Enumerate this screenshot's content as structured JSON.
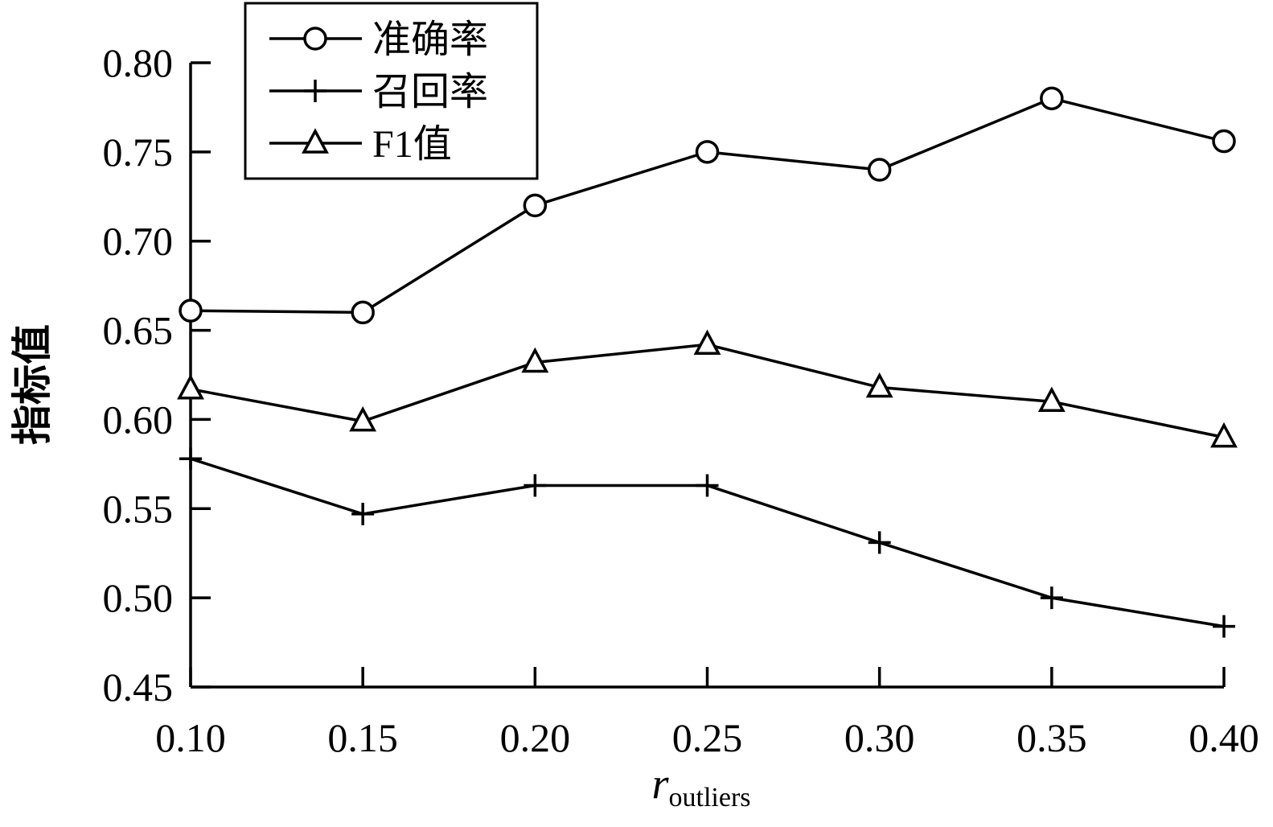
{
  "chart_data": {
    "type": "line",
    "title": "",
    "xlabel": "r",
    "xlabel_subscript": "outliers",
    "ylabel": "指标值",
    "x": [
      0.1,
      0.15,
      0.2,
      0.25,
      0.3,
      0.35,
      0.4
    ],
    "x_tick_labels": [
      "0.10",
      "0.15",
      "0.20",
      "0.25",
      "0.30",
      "0.35",
      "0.40"
    ],
    "y_tick_labels": [
      "0.45",
      "0.50",
      "0.55",
      "0.60",
      "0.65",
      "0.70",
      "0.75",
      "0.80"
    ],
    "xlim": [
      0.1,
      0.4
    ],
    "ylim": [
      0.45,
      0.8
    ],
    "grid": false,
    "legend_position": "top-left",
    "series": [
      {
        "name": "准确率",
        "marker": "circle",
        "values": [
          0.661,
          0.66,
          0.72,
          0.75,
          0.74,
          0.78,
          0.756
        ]
      },
      {
        "name": "召回率",
        "marker": "plus",
        "values": [
          0.578,
          0.547,
          0.563,
          0.563,
          0.531,
          0.5,
          0.484
        ]
      },
      {
        "name": "F1值",
        "marker": "triangle",
        "values": [
          0.617,
          0.599,
          0.632,
          0.642,
          0.618,
          0.61,
          0.59
        ]
      }
    ]
  }
}
